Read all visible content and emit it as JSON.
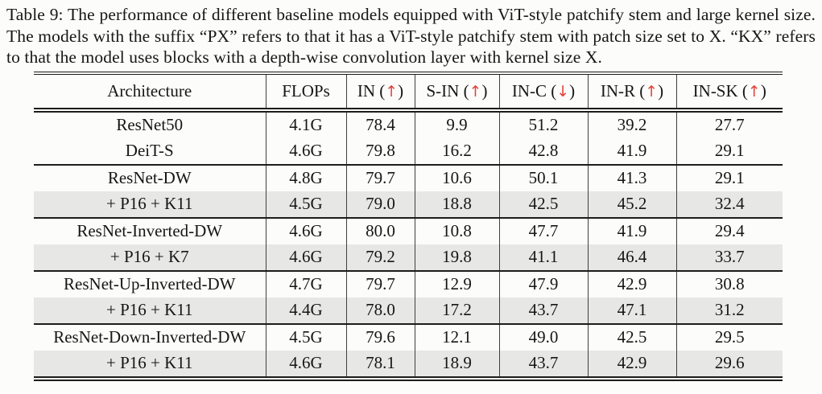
{
  "caption": {
    "label": "Table 9:",
    "text": "The performance of different baseline models equipped with ViT-style patchify stem and large kernel size. The models with the suffix “PX” refers to that it has a ViT-style patchify stem with patch size set to X. “KX” refers to that the model uses blocks with a depth-wise convolution layer with kernel size X."
  },
  "colors": {
    "arrow": "#e0443a",
    "row_shade": "#e7e7e5",
    "rule": "#1c1c1c",
    "text": "#161616",
    "background": "#fcfcfa"
  },
  "table": {
    "columns": [
      {
        "label": "Architecture"
      },
      {
        "label": "FLOPs"
      },
      {
        "label": "IN",
        "pre": "(",
        "glyph": "↑",
        "post": ")"
      },
      {
        "label": "S-IN",
        "pre": "(",
        "glyph": "↑",
        "post": ")"
      },
      {
        "label": "IN-C",
        "pre": "(",
        "glyph": "↓",
        "post": ")"
      },
      {
        "label": "IN-R",
        "pre": "(",
        "glyph": "↑",
        "post": ")"
      },
      {
        "label": "IN-SK",
        "pre": "(",
        "glyph": "↑",
        "post": ")"
      }
    ],
    "sections": [
      {
        "rows": [
          {
            "shaded": false,
            "cells": [
              "ResNet50",
              "4.1G",
              "78.4",
              "9.9",
              "51.2",
              "39.2",
              "27.7"
            ]
          },
          {
            "shaded": false,
            "cells": [
              "DeiT-S",
              "4.6G",
              "79.8",
              "16.2",
              "42.8",
              "41.9",
              "29.1"
            ]
          }
        ]
      },
      {
        "rows": [
          {
            "shaded": false,
            "cells": [
              "ResNet-DW",
              "4.8G",
              "79.7",
              "10.6",
              "50.1",
              "41.3",
              "29.1"
            ]
          },
          {
            "shaded": true,
            "cells": [
              "+ P16 + K11",
              "4.5G",
              "79.0",
              "18.8",
              "42.5",
              "45.2",
              "32.4"
            ]
          }
        ]
      },
      {
        "rows": [
          {
            "shaded": false,
            "cells": [
              "ResNet-Inverted-DW",
              "4.6G",
              "80.0",
              "10.8",
              "47.7",
              "41.9",
              "29.4"
            ]
          },
          {
            "shaded": true,
            "cells": [
              "+ P16 + K7",
              "4.6G",
              "79.2",
              "19.8",
              "41.1",
              "46.4",
              "33.7"
            ]
          }
        ]
      },
      {
        "rows": [
          {
            "shaded": false,
            "cells": [
              "ResNet-Up-Inverted-DW",
              "4.7G",
              "79.7",
              "12.9",
              "47.9",
              "42.9",
              "30.8"
            ]
          },
          {
            "shaded": true,
            "cells": [
              "+ P16 + K11",
              "4.4G",
              "78.0",
              "17.2",
              "43.7",
              "47.1",
              "31.2"
            ]
          }
        ]
      },
      {
        "rows": [
          {
            "shaded": false,
            "cells": [
              "ResNet-Down-Inverted-DW",
              "4.5G",
              "79.6",
              "12.1",
              "49.0",
              "42.5",
              "29.5"
            ]
          },
          {
            "shaded": true,
            "cells": [
              "+ P16 + K11",
              "4.6G",
              "78.1",
              "18.9",
              "43.7",
              "42.9",
              "29.6"
            ]
          }
        ]
      }
    ]
  }
}
